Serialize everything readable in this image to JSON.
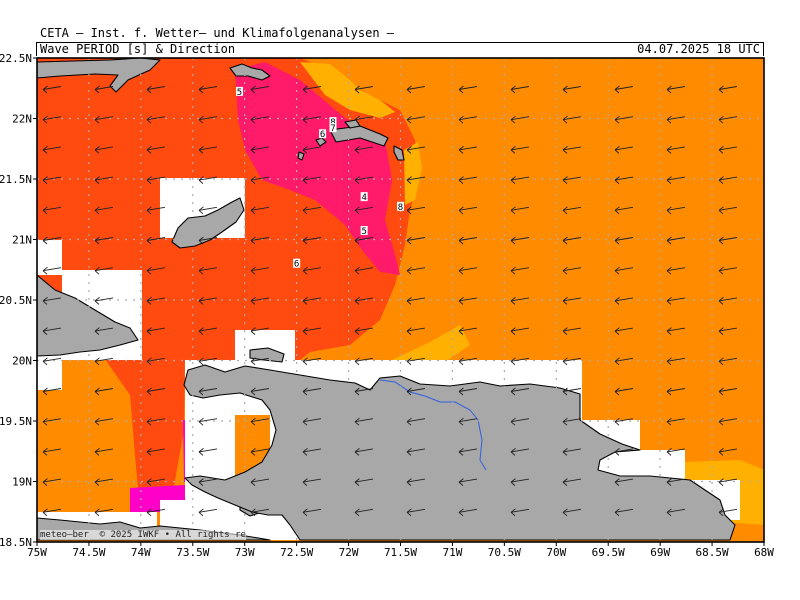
{
  "header": {
    "title": "CETA — Inst. f. Wetter— und Klimafolgenanalysen —",
    "subtitle": "Wave PERIOD [s] & Direction",
    "datetime": "04.07.2025 18 UTC"
  },
  "map": {
    "lon_range": [
      -75,
      -68
    ],
    "lat_range": [
      18.5,
      22.5
    ],
    "x_ticks": [
      "75W",
      "74.5W",
      "74W",
      "73.5W",
      "73W",
      "72.5W",
      "72W",
      "71.5W",
      "71W",
      "70.5W",
      "70W",
      "69.5W",
      "69W",
      "68.5W",
      "68W"
    ],
    "y_ticks": [
      "22.5N",
      "22N",
      "21.5N",
      "21N",
      "20.5N",
      "20N",
      "19.5N",
      "19N",
      "18.5N"
    ],
    "colors": {
      "land": "#a8a8a8",
      "ocean_base": "#ff8c00",
      "period_high": "#ff4a10",
      "period_peak": "#ff1a6a",
      "period_magenta": "#ff00c8",
      "period_low": "#ffb000",
      "river": "#3060e0",
      "nodata": "#ffffff",
      "grid": "#aaaaaa"
    },
    "period_labels": [
      {
        "text": "5",
        "lon": -73.05,
        "lat": 22.22
      },
      {
        "text": "8",
        "lon": -72.15,
        "lat": 21.97
      },
      {
        "text": "7",
        "lon": -72.15,
        "lat": 21.92
      },
      {
        "text": "6",
        "lon": -72.25,
        "lat": 21.87
      },
      {
        "text": "4",
        "lon": -71.85,
        "lat": 21.35
      },
      {
        "text": "8",
        "lon": -71.5,
        "lat": 21.27
      },
      {
        "text": "5",
        "lon": -71.85,
        "lat": 21.07
      },
      {
        "text": "6",
        "lon": -72.5,
        "lat": 20.8
      }
    ],
    "credit": "meteo—ber  © 2025 IWKF • All rights re"
  }
}
